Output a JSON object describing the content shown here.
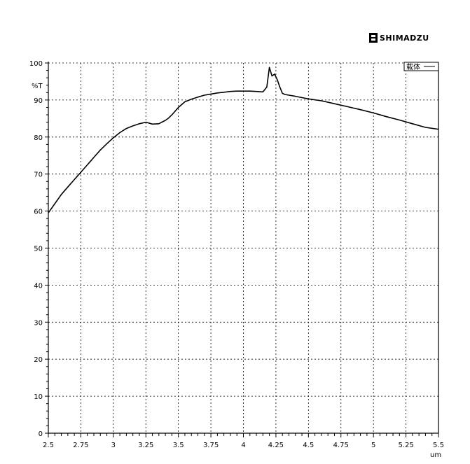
{
  "brand": {
    "name": "SHIMADZU",
    "logo_icon": "shimadzu-logo-icon"
  },
  "chart_data": {
    "type": "line",
    "title": "",
    "xlabel": "um",
    "ylabel": "%T",
    "xlim": [
      2.5,
      5.5
    ],
    "ylim": [
      0,
      100
    ],
    "x_ticks": [
      2.5,
      2.75,
      3,
      3.25,
      3.5,
      3.75,
      4,
      4.25,
      4.5,
      4.75,
      5,
      5.25,
      5.5
    ],
    "x_tick_labels": [
      "2.5",
      "2.75",
      "3",
      "3.25",
      "3.5",
      "3.75",
      "4",
      "4.25",
      "4.5",
      "4.75",
      "5",
      "5.25",
      "5.5"
    ],
    "y_ticks": [
      0,
      10,
      20,
      30,
      40,
      50,
      60,
      70,
      80,
      90,
      100
    ],
    "y_tick_labels": [
      "0",
      "10",
      "20",
      "30",
      "40",
      "50",
      "60",
      "70",
      "80",
      "90",
      "100"
    ],
    "grid": true,
    "legend": {
      "placement": "top-right",
      "entries": [
        {
          "label": "载体",
          "color": "#000000"
        }
      ]
    },
    "series": [
      {
        "color": "#000000",
        "x": [
          2.5,
          2.55,
          2.6,
          2.65,
          2.7,
          2.75,
          2.8,
          2.85,
          2.9,
          2.95,
          3.0,
          3.05,
          3.1,
          3.15,
          3.2,
          3.25,
          3.3,
          3.35,
          3.4,
          3.42,
          3.45,
          3.5,
          3.55,
          3.6,
          3.65,
          3.7,
          3.75,
          3.8,
          3.85,
          3.9,
          3.95,
          4.0,
          4.05,
          4.1,
          4.15,
          4.18,
          4.2,
          4.22,
          4.24,
          4.26,
          4.28,
          4.3,
          4.32,
          4.35,
          4.4,
          4.5,
          4.6,
          4.7,
          4.8,
          4.9,
          5.0,
          5.1,
          5.2,
          5.3,
          5.4,
          5.5
        ],
        "y": [
          59.5,
          62.0,
          64.5,
          66.5,
          68.5,
          70.5,
          72.5,
          74.5,
          76.5,
          78.2,
          79.8,
          81.2,
          82.3,
          83.0,
          83.6,
          84.0,
          83.5,
          83.6,
          84.5,
          85.0,
          86.0,
          88.0,
          89.5,
          90.2,
          90.8,
          91.3,
          91.6,
          91.9,
          92.1,
          92.3,
          92.4,
          92.4,
          92.4,
          92.3,
          92.2,
          93.5,
          98.8,
          96.5,
          97.0,
          95.5,
          93.5,
          91.8,
          91.5,
          91.3,
          91.0,
          90.3,
          89.8,
          89.0,
          88.2,
          87.4,
          86.5,
          85.5,
          84.6,
          83.6,
          82.6,
          82.1
        ]
      }
    ]
  }
}
